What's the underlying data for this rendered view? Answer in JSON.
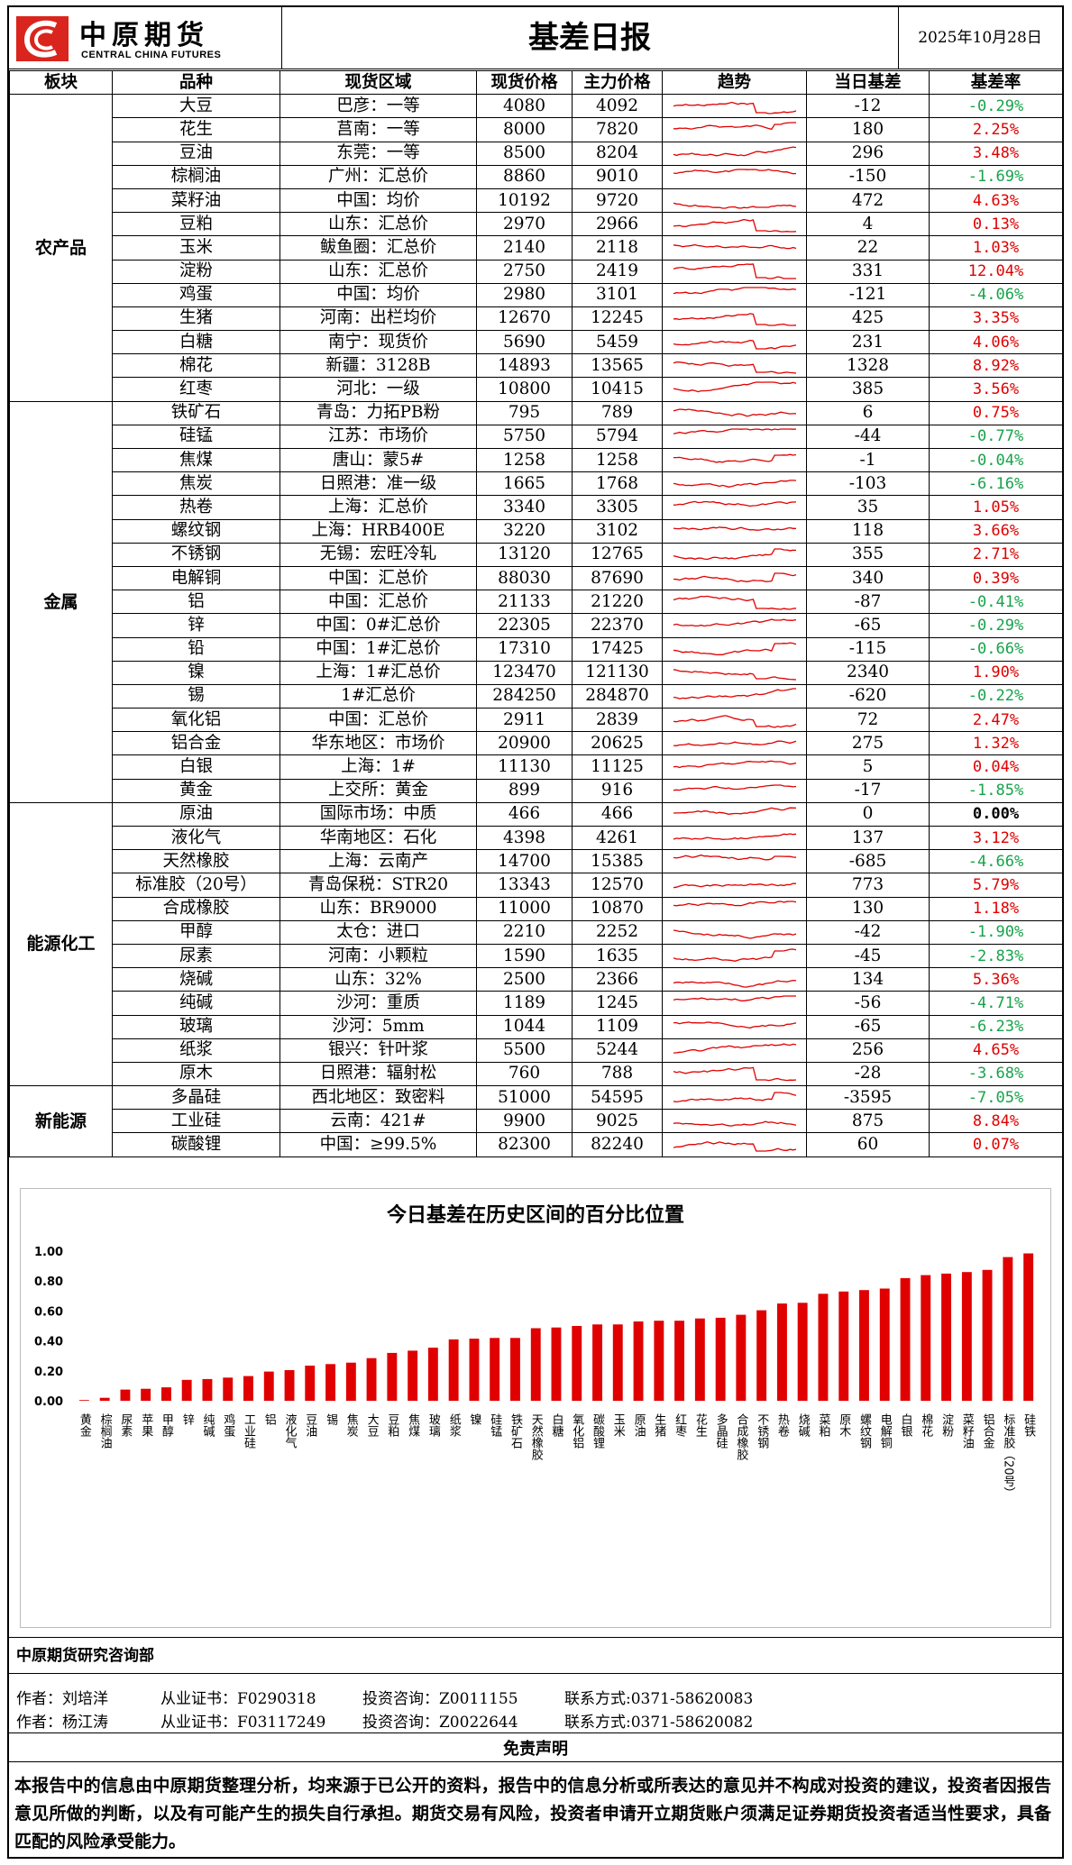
{
  "header": {
    "logo_cn": "中原期货",
    "logo_en": "CENTRAL CHINA FUTURES",
    "title": "基差日报",
    "date": "2025年10月28日"
  },
  "table": {
    "columns": [
      "板块",
      "品种",
      "现货区域",
      "现货价格",
      "主力价格",
      "趋势",
      "当日基差",
      "基差率"
    ],
    "sectors": [
      {
        "name": "农产品",
        "rows": [
          {
            "variety": "大豆",
            "region": "巴彦：一等",
            "spot": "4080",
            "main": "4092",
            "basis": "-12",
            "rate": "-0.29%"
          },
          {
            "variety": "花生",
            "region": "莒南：一等",
            "spot": "8000",
            "main": "7820",
            "basis": "180",
            "rate": "2.25%"
          },
          {
            "variety": "豆油",
            "region": "东莞：一等",
            "spot": "8500",
            "main": "8204",
            "basis": "296",
            "rate": "3.48%"
          },
          {
            "variety": "棕榈油",
            "region": "广州：汇总价",
            "spot": "8860",
            "main": "9010",
            "basis": "-150",
            "rate": "-1.69%"
          },
          {
            "variety": "菜籽油",
            "region": "中国：均价",
            "spot": "10192",
            "main": "9720",
            "basis": "472",
            "rate": "4.63%"
          },
          {
            "variety": "豆粕",
            "region": "山东：汇总价",
            "spot": "2970",
            "main": "2966",
            "basis": "4",
            "rate": "0.13%"
          },
          {
            "variety": "玉米",
            "region": "鲅鱼圈：汇总价",
            "spot": "2140",
            "main": "2118",
            "basis": "22",
            "rate": "1.03%"
          },
          {
            "variety": "淀粉",
            "region": "山东：汇总价",
            "spot": "2750",
            "main": "2419",
            "basis": "331",
            "rate": "12.04%"
          },
          {
            "variety": "鸡蛋",
            "region": "中国：均价",
            "spot": "2980",
            "main": "3101",
            "basis": "-121",
            "rate": "-4.06%"
          },
          {
            "variety": "生猪",
            "region": "河南：出栏均价",
            "spot": "12670",
            "main": "12245",
            "basis": "425",
            "rate": "3.35%"
          },
          {
            "variety": "白糖",
            "region": "南宁：现货价",
            "spot": "5690",
            "main": "5459",
            "basis": "231",
            "rate": "4.06%"
          },
          {
            "variety": "棉花",
            "region": "新疆：3128B",
            "spot": "14893",
            "main": "13565",
            "basis": "1328",
            "rate": "8.92%"
          },
          {
            "variety": "红枣",
            "region": "河北：一级",
            "spot": "10800",
            "main": "10415",
            "basis": "385",
            "rate": "3.56%"
          }
        ]
      },
      {
        "name": "金属",
        "rows": [
          {
            "variety": "铁矿石",
            "region": "青岛：力拓PB粉",
            "spot": "795",
            "main": "789",
            "basis": "6",
            "rate": "0.75%"
          },
          {
            "variety": "硅锰",
            "region": "江苏：市场价",
            "spot": "5750",
            "main": "5794",
            "basis": "-44",
            "rate": "-0.77%"
          },
          {
            "variety": "焦煤",
            "region": "唐山：蒙5#",
            "spot": "1258",
            "main": "1258",
            "basis": "-1",
            "rate": "-0.04%"
          },
          {
            "variety": "焦炭",
            "region": "日照港：准一级",
            "spot": "1665",
            "main": "1768",
            "basis": "-103",
            "rate": "-6.16%"
          },
          {
            "variety": "热卷",
            "region": "上海：汇总价",
            "spot": "3340",
            "main": "3305",
            "basis": "35",
            "rate": "1.05%"
          },
          {
            "variety": "螺纹钢",
            "region": "上海：HRB400E",
            "spot": "3220",
            "main": "3102",
            "basis": "118",
            "rate": "3.66%"
          },
          {
            "variety": "不锈钢",
            "region": "无锡：宏旺冷轧",
            "spot": "13120",
            "main": "12765",
            "basis": "355",
            "rate": "2.71%"
          },
          {
            "variety": "电解铜",
            "region": "中国：汇总价",
            "spot": "88030",
            "main": "87690",
            "basis": "340",
            "rate": "0.39%"
          },
          {
            "variety": "铝",
            "region": "中国：汇总价",
            "spot": "21133",
            "main": "21220",
            "basis": "-87",
            "rate": "-0.41%"
          },
          {
            "variety": "锌",
            "region": "中国：0#汇总价",
            "spot": "22305",
            "main": "22370",
            "basis": "-65",
            "rate": "-0.29%"
          },
          {
            "variety": "铅",
            "region": "中国：1#汇总价",
            "spot": "17310",
            "main": "17425",
            "basis": "-115",
            "rate": "-0.66%"
          },
          {
            "variety": "镍",
            "region": "上海：1#汇总价",
            "spot": "123470",
            "main": "121130",
            "basis": "2340",
            "rate": "1.90%"
          },
          {
            "variety": "锡",
            "region": "1#汇总价",
            "spot": "284250",
            "main": "284870",
            "basis": "-620",
            "rate": "-0.22%"
          },
          {
            "variety": "氧化铝",
            "region": "中国：汇总价",
            "spot": "2911",
            "main": "2839",
            "basis": "72",
            "rate": "2.47%"
          },
          {
            "variety": "铝合金",
            "region": "华东地区：市场价",
            "spot": "20900",
            "main": "20625",
            "basis": "275",
            "rate": "1.32%"
          },
          {
            "variety": "白银",
            "region": "上海：1#",
            "spot": "11130",
            "main": "11125",
            "basis": "5",
            "rate": "0.04%"
          },
          {
            "variety": "黄金",
            "region": "上交所：黄金",
            "spot": "899",
            "main": "916",
            "basis": "-17",
            "rate": "-1.85%"
          }
        ]
      },
      {
        "name": "能源化工",
        "rows": [
          {
            "variety": "原油",
            "region": "国际市场：中质",
            "spot": "466",
            "main": "466",
            "basis": "0",
            "rate": "0.00%"
          },
          {
            "variety": "液化气",
            "region": "华南地区：石化",
            "spot": "4398",
            "main": "4261",
            "basis": "137",
            "rate": "3.12%"
          },
          {
            "variety": "天然橡胶",
            "region": "上海：云南产",
            "spot": "14700",
            "main": "15385",
            "basis": "-685",
            "rate": "-4.66%"
          },
          {
            "variety": "标准胶（20号）",
            "region": "青岛保税：STR20",
            "spot": "13343",
            "main": "12570",
            "basis": "773",
            "rate": "5.79%"
          },
          {
            "variety": "合成橡胶",
            "region": "山东：BR9000",
            "spot": "11000",
            "main": "10870",
            "basis": "130",
            "rate": "1.18%"
          },
          {
            "variety": "甲醇",
            "region": "太仓：进口",
            "spot": "2210",
            "main": "2252",
            "basis": "-42",
            "rate": "-1.90%"
          },
          {
            "variety": "尿素",
            "region": "河南：小颗粒",
            "spot": "1590",
            "main": "1635",
            "basis": "-45",
            "rate": "-2.83%"
          },
          {
            "variety": "烧碱",
            "region": "山东：32%",
            "spot": "2500",
            "main": "2366",
            "basis": "134",
            "rate": "5.36%"
          },
          {
            "variety": "纯碱",
            "region": "沙河：重质",
            "spot": "1189",
            "main": "1245",
            "basis": "-56",
            "rate": "-4.71%"
          },
          {
            "variety": "玻璃",
            "region": "沙河：5mm",
            "spot": "1044",
            "main": "1109",
            "basis": "-65",
            "rate": "-6.23%"
          },
          {
            "variety": "纸浆",
            "region": "银兴：针叶浆",
            "spot": "5500",
            "main": "5244",
            "basis": "256",
            "rate": "4.65%"
          },
          {
            "variety": "原木",
            "region": "日照港：辐射松",
            "spot": "760",
            "main": "788",
            "basis": "-28",
            "rate": "-3.68%"
          }
        ]
      },
      {
        "name": "新能源",
        "rows": [
          {
            "variety": "多晶硅",
            "region": "西北地区：致密料",
            "spot": "51000",
            "main": "54595",
            "basis": "-3595",
            "rate": "-7.05%"
          },
          {
            "variety": "工业硅",
            "region": "云南：421#",
            "spot": "9900",
            "main": "9025",
            "basis": "875",
            "rate": "8.84%"
          },
          {
            "variety": "碳酸锂",
            "region": "中国：≥99.5%",
            "spot": "82300",
            "main": "82240",
            "basis": "60",
            "rate": "0.07%"
          }
        ]
      }
    ]
  },
  "chart_data": {
    "type": "bar",
    "title": "今日基差在历史区间的百分比位置",
    "xlabel": "",
    "ylabel": "",
    "ylim": [
      0,
      1
    ],
    "yticks": [
      "0.00",
      "0.20",
      "0.40",
      "0.60",
      "0.80",
      "1.00"
    ],
    "bar_color": "#e00000",
    "categories": [
      "黄金",
      "棕榈油",
      "尿素",
      "苹果",
      "甲醇",
      "锌",
      "纯碱",
      "鸡蛋",
      "工业硅",
      "铝",
      "液化气",
      "豆油",
      "锡",
      "焦炭",
      "大豆",
      "豆粕",
      "焦煤",
      "玻璃",
      "纸浆",
      "镍",
      "硅锰",
      "铁矿石",
      "天然橡胶",
      "白糖",
      "氧化铝",
      "碳酸锂",
      "玉米",
      "原油",
      "生猪",
      "红枣",
      "花生",
      "多晶硅",
      "合成橡胶",
      "不锈钢",
      "热卷",
      "烧碱",
      "菜粕",
      "原木",
      "螺纹钢",
      "电解铜",
      "白银",
      "棉花",
      "淀粉",
      "菜籽油",
      "铝合金",
      "标准胶（20号）",
      "硅铁"
    ],
    "values": [
      0.005,
      0.02,
      0.075,
      0.08,
      0.09,
      0.14,
      0.145,
      0.155,
      0.165,
      0.195,
      0.205,
      0.235,
      0.245,
      0.255,
      0.285,
      0.32,
      0.335,
      0.355,
      0.41,
      0.415,
      0.42,
      0.42,
      0.485,
      0.49,
      0.5,
      0.51,
      0.51,
      0.53,
      0.535,
      0.535,
      0.55,
      0.555,
      0.575,
      0.605,
      0.65,
      0.655,
      0.715,
      0.73,
      0.74,
      0.75,
      0.82,
      0.84,
      0.85,
      0.86,
      0.875,
      0.96,
      0.985
    ]
  },
  "footer": {
    "department": "中原期货研究咨询部",
    "authors": [
      {
        "name": "作者：刘培洋",
        "license": "从业证书：F0290318",
        "consult": "投资咨询：Z0011155",
        "contact": "联系方式:0371-58620083"
      },
      {
        "name": "作者：杨江涛",
        "license": "从业证书：F03117249",
        "consult": "投资咨询：Z0022644",
        "contact": "联系方式:0371-58620082"
      }
    ],
    "disclaimer_title": "免责声明",
    "disclaimer_text": "本报告中的信息由中原期货整理分析，均来源于已公开的资料，报告中的信息分析或所表达的意见并不构成对投资的建议，投资者因报告意见所做的判断，以及有可能产生的损失自行承担。期货交易有风险，投资者申请开立期货账户须满足证券期货投资者适当性要求，具备匹配的风险承受能力。"
  }
}
